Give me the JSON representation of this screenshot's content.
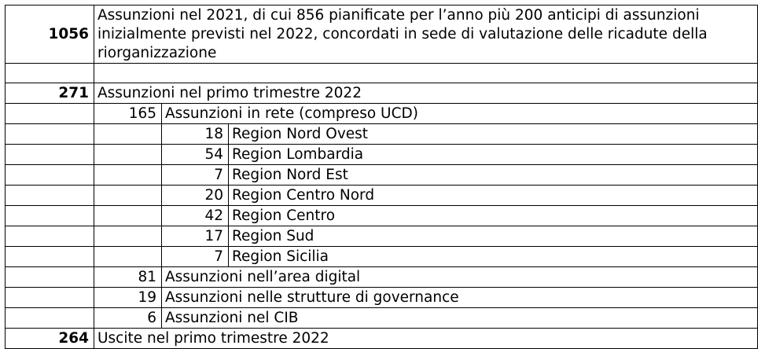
{
  "rows": {
    "r1": {
      "num": "1056",
      "text": "Assunzioni nel 2021, di cui 856 pianificate per l’anno più 200 anticipi di assunzioni inizialmente previsti nel 2022, concordati in sede di valutazione delle ricadute della riorganizzazione"
    },
    "r3": {
      "num": "271",
      "text": "Assunzioni nel primo trimestre 2022"
    },
    "r4": {
      "num": "165",
      "text": "Assunzioni in rete (compreso UCD)"
    },
    "r5": {
      "num": "18",
      "text": "Region Nord Ovest"
    },
    "r6": {
      "num": "54",
      "text": "Region Lombardia"
    },
    "r7": {
      "num": "7",
      "text": "Region Nord Est"
    },
    "r8": {
      "num": "20",
      "text": "Region Centro Nord"
    },
    "r9": {
      "num": "42",
      "text": "Region Centro"
    },
    "r10": {
      "num": "17",
      "text": "Region Sud"
    },
    "r11": {
      "num": "7",
      "text": "Region Sicilia"
    },
    "r12": {
      "num": "81",
      "text": "Assunzioni nell’area digital"
    },
    "r13": {
      "num": "19",
      "text": "Assunzioni nelle strutture di governance"
    },
    "r14": {
      "num": "6",
      "text": "Assunzioni nel CIB"
    },
    "r15": {
      "num": "264",
      "text": "Uscite nel primo trimestre 2022"
    }
  }
}
